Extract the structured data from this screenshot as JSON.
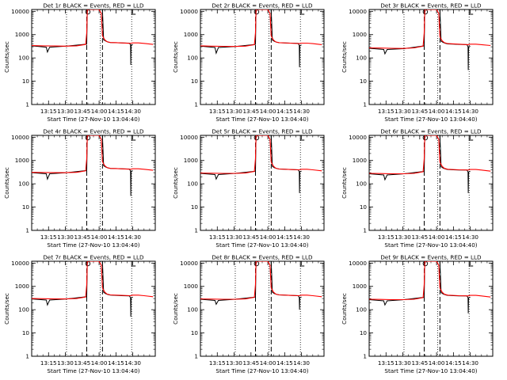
{
  "figure": {
    "ylabel": "Counts/sec",
    "xlabel": "Start Time (27-Nov-10 13:04:40)"
  },
  "common": {
    "type": "line",
    "x_ticks": [
      "13:15",
      "13:30",
      "13:45",
      "14:00",
      "14:15",
      "14:30"
    ],
    "x_tick_minutes": [
      15,
      30,
      45,
      60,
      75,
      90
    ],
    "x_range_minutes": [
      0,
      110
    ],
    "x_origin": "13:00",
    "y_scale": "log",
    "ylim": [
      1,
      12000
    ],
    "y_ticks": [
      {
        "value": 1,
        "label": "1"
      },
      {
        "value": 10,
        "label": "10"
      },
      {
        "value": 100,
        "label": "100"
      },
      {
        "value": 1000,
        "label": "1000"
      },
      {
        "value": 10000,
        "label": "10000"
      }
    ],
    "dotted_lines_minutes": [
      31,
      61,
      89
    ],
    "dashed_lines_minutes": [
      49,
      63
    ],
    "marker_C_minutes": 50,
    "marker_L_minutes": 89
  },
  "chart_data": [
    {
      "type": "line",
      "title": "Det 1r BLACK = Events, RED = LLD",
      "ylabel": "Counts/sec",
      "xlabel": "Start Time (27-Nov-10 13:04:40)",
      "series": [
        {
          "color": "#000000",
          "x": [
            0,
            13,
            14,
            16,
            31,
            49,
            49.5,
            63,
            64,
            66,
            68,
            70,
            75,
            80,
            87,
            88,
            88.2,
            88.5,
            90
          ],
          "y": [
            330,
            290,
            180,
            290,
            320,
            390,
            12000,
            12000,
            600,
            530,
            480,
            460,
            450,
            440,
            430,
            360,
            50,
            360,
            370
          ]
        },
        {
          "color": "#ff0000",
          "x": [
            0,
            10,
            20,
            30,
            40,
            48,
            49,
            49.5,
            55,
            60,
            62,
            63,
            65,
            67,
            70,
            80,
            88,
            90,
            95,
            100,
            108
          ],
          "y": [
            340,
            330,
            325,
            320,
            330,
            380,
            1200,
            12000,
            12000,
            12000,
            8000,
            900,
            600,
            500,
            460,
            440,
            420,
            440,
            440,
            420,
            380
          ]
        }
      ]
    },
    {
      "type": "line",
      "title": "Det 2r BLACK = Events, RED = LLD",
      "ylabel": "Counts/sec",
      "xlabel": "Start Time (27-Nov-10 13:04:40)",
      "series": [
        {
          "color": "#000000",
          "x": [
            0,
            13,
            14,
            16,
            31,
            49,
            49.5,
            63,
            64,
            66,
            68,
            70,
            75,
            80,
            87,
            88,
            88.2,
            88.5,
            90
          ],
          "y": [
            320,
            280,
            160,
            280,
            310,
            380,
            12000,
            12000,
            580,
            510,
            470,
            450,
            440,
            430,
            420,
            340,
            40,
            340,
            360
          ]
        },
        {
          "color": "#ff0000",
          "x": [
            0,
            10,
            20,
            30,
            40,
            48,
            49,
            49.5,
            55,
            60,
            62,
            63,
            65,
            67,
            70,
            80,
            88,
            90,
            95,
            100,
            108
          ],
          "y": [
            330,
            320,
            315,
            310,
            320,
            370,
            1200,
            12000,
            12000,
            12000,
            8000,
            880,
            590,
            490,
            450,
            430,
            410,
            430,
            430,
            410,
            370
          ]
        }
      ]
    },
    {
      "type": "line",
      "title": "Det 3r BLACK = Events, RED = LLD",
      "ylabel": "Counts/sec",
      "xlabel": "Start Time (27-Nov-10 13:04:40)",
      "series": [
        {
          "color": "#000000",
          "x": [
            0,
            13,
            14,
            16,
            31,
            49,
            49.5,
            63,
            64,
            66,
            68,
            70,
            75,
            80,
            87,
            88,
            88.2,
            88.5,
            90
          ],
          "y": [
            260,
            230,
            150,
            230,
            250,
            330,
            12000,
            12000,
            520,
            460,
            420,
            400,
            390,
            380,
            370,
            300,
            30,
            300,
            320
          ]
        },
        {
          "color": "#ff0000",
          "x": [
            0,
            10,
            20,
            30,
            40,
            48,
            49,
            49.5,
            55,
            60,
            62,
            63,
            65,
            67,
            70,
            80,
            88,
            90,
            95,
            100,
            108
          ],
          "y": [
            270,
            265,
            260,
            255,
            270,
            320,
            1200,
            12000,
            12000,
            12000,
            8000,
            800,
            540,
            450,
            410,
            390,
            370,
            390,
            390,
            370,
            340
          ]
        }
      ]
    },
    {
      "type": "line",
      "title": "Det 4r BLACK = Events, RED = LLD",
      "ylabel": "Counts/sec",
      "xlabel": "Start Time (27-Nov-10 13:04:40)",
      "series": [
        {
          "color": "#000000",
          "x": [
            0,
            13,
            14,
            16,
            31,
            49,
            49.5,
            63,
            64,
            66,
            68,
            70,
            75,
            80,
            87,
            88,
            88.2,
            88.5,
            90
          ],
          "y": [
            300,
            270,
            160,
            270,
            300,
            370,
            12000,
            12000,
            600,
            520,
            480,
            460,
            450,
            440,
            430,
            350,
            30,
            350,
            360
          ]
        },
        {
          "color": "#ff0000",
          "x": [
            0,
            10,
            20,
            30,
            40,
            48,
            49,
            49.5,
            55,
            60,
            62,
            63,
            65,
            67,
            70,
            80,
            88,
            90,
            95,
            100,
            108
          ],
          "y": [
            310,
            305,
            300,
            300,
            310,
            360,
            1200,
            12000,
            12000,
            12000,
            8000,
            900,
            600,
            500,
            460,
            440,
            420,
            440,
            440,
            420,
            380
          ]
        }
      ]
    },
    {
      "type": "line",
      "title": "Det 5r BLACK = Events, RED = LLD",
      "ylabel": "Counts/sec",
      "xlabel": "Start Time (27-Nov-10 13:04:40)",
      "series": [
        {
          "color": "#000000",
          "x": [
            0,
            13,
            14,
            16,
            31,
            49,
            49.5,
            63,
            64,
            66,
            68,
            70,
            75,
            80,
            87,
            88,
            88.2,
            88.5,
            90
          ],
          "y": [
            280,
            250,
            160,
            250,
            280,
            350,
            12000,
            12000,
            560,
            490,
            450,
            430,
            420,
            410,
            400,
            330,
            40,
            330,
            350
          ]
        },
        {
          "color": "#ff0000",
          "x": [
            0,
            10,
            20,
            30,
            40,
            48,
            49,
            49.5,
            55,
            60,
            62,
            63,
            65,
            67,
            70,
            80,
            88,
            90,
            95,
            100,
            108
          ],
          "y": [
            290,
            285,
            280,
            280,
            290,
            340,
            1200,
            12000,
            12000,
            12000,
            8000,
            860,
            570,
            470,
            430,
            410,
            400,
            420,
            420,
            400,
            360
          ]
        }
      ]
    },
    {
      "type": "line",
      "title": "Det 6r BLACK = Events, RED = LLD",
      "ylabel": "Counts/sec",
      "xlabel": "Start Time (27-Nov-10 13:04:40)",
      "series": [
        {
          "color": "#000000",
          "x": [
            0,
            13,
            14,
            16,
            31,
            49,
            49.5,
            63,
            64,
            66,
            68,
            70,
            75,
            80,
            87,
            88,
            88.2,
            88.5,
            90
          ],
          "y": [
            270,
            240,
            150,
            240,
            270,
            340,
            12000,
            12000,
            540,
            470,
            430,
            410,
            400,
            390,
            390,
            320,
            40,
            320,
            340
          ]
        },
        {
          "color": "#ff0000",
          "x": [
            0,
            10,
            20,
            30,
            40,
            48,
            49,
            49.5,
            55,
            60,
            62,
            63,
            65,
            67,
            70,
            80,
            88,
            90,
            95,
            100,
            108
          ],
          "y": [
            280,
            275,
            270,
            270,
            280,
            330,
            1200,
            12000,
            12000,
            12000,
            8000,
            840,
            560,
            460,
            420,
            400,
            390,
            410,
            410,
            390,
            350
          ]
        }
      ]
    },
    {
      "type": "line",
      "title": "Det 7r BLACK = Events, RED = LLD",
      "ylabel": "Counts/sec",
      "xlabel": "Start Time (27-Nov-10 13:04:40)",
      "series": [
        {
          "color": "#000000",
          "x": [
            0,
            13,
            14,
            16,
            31,
            49,
            49.5,
            63,
            64,
            66,
            68,
            70,
            75,
            80,
            87,
            88,
            88.2,
            88.5,
            90
          ],
          "y": [
            290,
            260,
            160,
            260,
            290,
            360,
            12000,
            12000,
            560,
            480,
            440,
            420,
            410,
            400,
            390,
            320,
            50,
            320,
            340
          ]
        },
        {
          "color": "#ff0000",
          "x": [
            0,
            10,
            20,
            30,
            40,
            48,
            49,
            49.5,
            55,
            60,
            62,
            63,
            65,
            67,
            70,
            80,
            88,
            90,
            95,
            100,
            108
          ],
          "y": [
            300,
            295,
            290,
            290,
            300,
            350,
            1200,
            12000,
            12000,
            12000,
            8000,
            860,
            570,
            470,
            430,
            410,
            400,
            420,
            420,
            400,
            360
          ]
        }
      ]
    },
    {
      "type": "line",
      "title": "Det 8r BLACK = Events, RED = LLD",
      "ylabel": "Counts/sec",
      "xlabel": "Start Time (27-Nov-10 13:04:40)",
      "series": [
        {
          "color": "#000000",
          "x": [
            0,
            13,
            14,
            16,
            31,
            49,
            49.5,
            63,
            64,
            66,
            68,
            70,
            75,
            80,
            87,
            88,
            88.2,
            88.5,
            90
          ],
          "y": [
            280,
            250,
            170,
            250,
            280,
            350,
            12000,
            12000,
            560,
            490,
            450,
            430,
            420,
            410,
            400,
            330,
            100,
            330,
            350
          ]
        },
        {
          "color": "#ff0000",
          "x": [
            0,
            10,
            20,
            30,
            40,
            48,
            49,
            49.5,
            55,
            60,
            62,
            63,
            65,
            67,
            70,
            80,
            88,
            90,
            95,
            100,
            108
          ],
          "y": [
            290,
            285,
            280,
            280,
            290,
            340,
            1200,
            12000,
            12000,
            12000,
            8000,
            860,
            570,
            470,
            430,
            410,
            400,
            420,
            420,
            400,
            360
          ]
        }
      ]
    },
    {
      "type": "line",
      "title": "Det 9r BLACK = Events, RED = LLD",
      "ylabel": "Counts/sec",
      "xlabel": "Start Time (27-Nov-10 13:04:40)",
      "series": [
        {
          "color": "#000000",
          "x": [
            0,
            13,
            14,
            16,
            31,
            49,
            49.5,
            63,
            64,
            66,
            68,
            70,
            75,
            80,
            87,
            88,
            88.2,
            88.5,
            90
          ],
          "y": [
            270,
            240,
            160,
            240,
            270,
            340,
            12000,
            12000,
            540,
            470,
            430,
            410,
            400,
            390,
            390,
            320,
            70,
            320,
            340
          ]
        },
        {
          "color": "#ff0000",
          "x": [
            0,
            10,
            20,
            30,
            40,
            48,
            49,
            49.5,
            55,
            60,
            62,
            63,
            65,
            67,
            70,
            80,
            88,
            90,
            95,
            100,
            108
          ],
          "y": [
            280,
            275,
            270,
            270,
            280,
            330,
            1200,
            12000,
            12000,
            12000,
            8000,
            840,
            560,
            460,
            420,
            400,
            390,
            410,
            410,
            390,
            350
          ]
        }
      ]
    }
  ]
}
